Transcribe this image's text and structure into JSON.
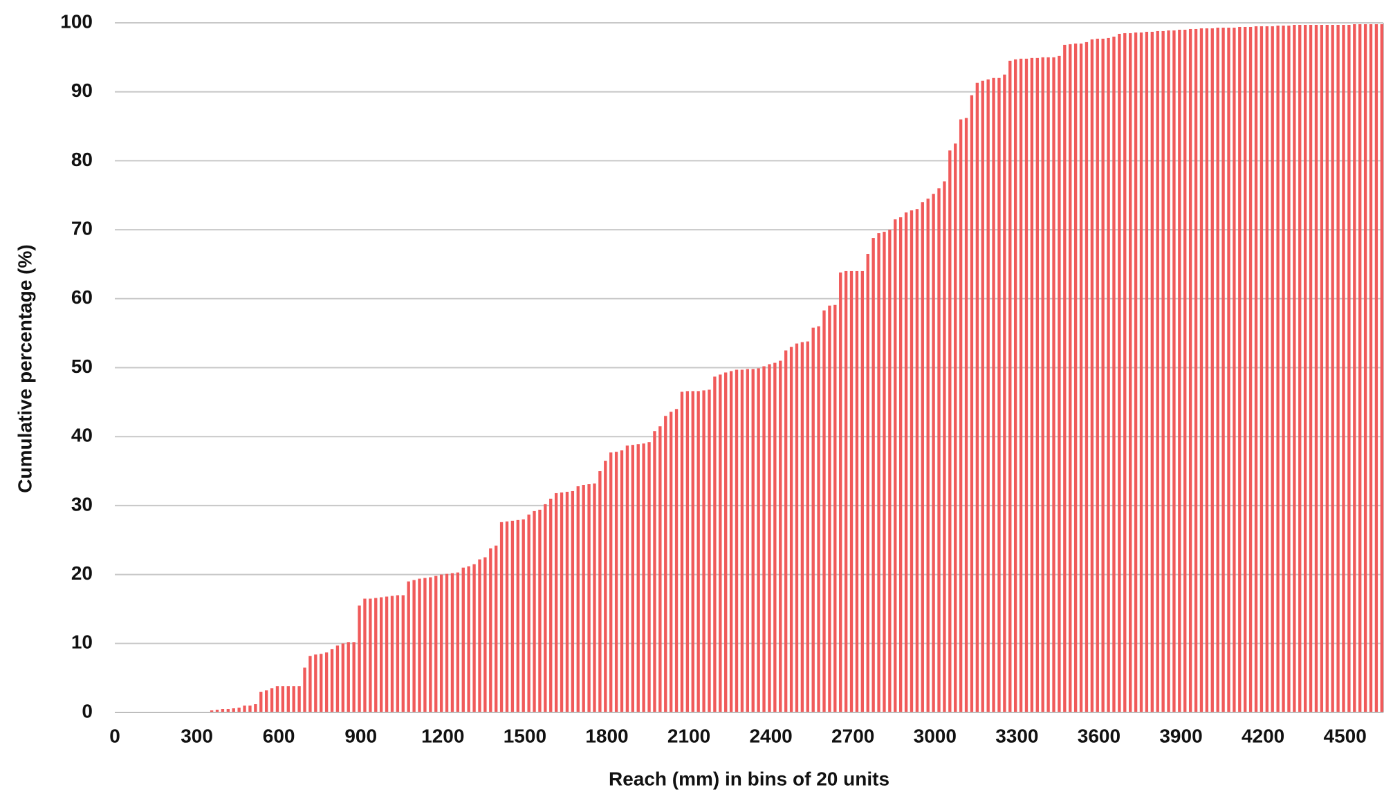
{
  "chart_data": {
    "type": "histogram",
    "xlabel": "Reach (mm) in bins of 20 units",
    "ylabel": "Cumulative percentage (%)",
    "color": "#f05a5a",
    "grid": true,
    "xlim": [
      0,
      4640
    ],
    "ylim": [
      0,
      100
    ],
    "xticks": [
      0,
      300,
      600,
      900,
      1200,
      1500,
      1800,
      2100,
      2400,
      2700,
      3000,
      3300,
      3600,
      3900,
      4200,
      4500
    ],
    "yticks": [
      0,
      10,
      20,
      30,
      40,
      50,
      60,
      70,
      80,
      90,
      100
    ],
    "bins": [
      0,
      20,
      40,
      60,
      80,
      100,
      120,
      140,
      160,
      180,
      200,
      220,
      240,
      260,
      280,
      300,
      320,
      340,
      360,
      380,
      400,
      420,
      440,
      460,
      480,
      500,
      520,
      540,
      560,
      580,
      600,
      620,
      640,
      660,
      680,
      700,
      720,
      740,
      760,
      780,
      800,
      820,
      840,
      860,
      880,
      900,
      920,
      940,
      960,
      980,
      1000,
      1020,
      1040,
      1060,
      1080,
      1100,
      1120,
      1140,
      1160,
      1180,
      1200,
      1220,
      1240,
      1260,
      1280,
      1300,
      1320,
      1340,
      1360,
      1380,
      1400,
      1420,
      1440,
      1460,
      1480,
      1500,
      1520,
      1540,
      1560,
      1580,
      1600,
      1620,
      1640,
      1660,
      1680,
      1700,
      1720,
      1740,
      1760,
      1780,
      1800,
      1820,
      1840,
      1860,
      1880,
      1900,
      1920,
      1940,
      1960,
      1980,
      2000,
      2020,
      2040,
      2060,
      2080,
      2100,
      2120,
      2140,
      2160,
      2180,
      2200,
      2220,
      2240,
      2260,
      2280,
      2300,
      2320,
      2340,
      2360,
      2380,
      2400,
      2420,
      2440,
      2460,
      2480,
      2500,
      2520,
      2540,
      2560,
      2580,
      2600,
      2620,
      2640,
      2660,
      2680,
      2700,
      2720,
      2740,
      2760,
      2780,
      2800,
      2820,
      2840,
      2860,
      2880,
      2900,
      2920,
      2940,
      2960,
      2980,
      3000,
      3020,
      3040,
      3060,
      3080,
      3100,
      3120,
      3140,
      3160,
      3180,
      3200,
      3220,
      3240,
      3260,
      3280,
      3300,
      3320,
      3340,
      3360,
      3380,
      3400,
      3420,
      3440,
      3460,
      3480,
      3500,
      3520,
      3540,
      3560,
      3580,
      3600,
      3620,
      3640,
      3660,
      3680,
      3700,
      3720,
      3740,
      3760,
      3780,
      3800,
      3820,
      3840,
      3860,
      3880,
      3900,
      3920,
      3940,
      3960,
      3980,
      4000,
      4020,
      4040,
      4060,
      4080,
      4100,
      4120,
      4140,
      4160,
      4180,
      4200,
      4220,
      4240,
      4260,
      4280,
      4300,
      4320,
      4340,
      4360,
      4380,
      4400,
      4420,
      4440,
      4460,
      4480,
      4500,
      4520,
      4540,
      4560,
      4580,
      4600,
      4620,
      4640
    ],
    "values": [
      0,
      0,
      0,
      0,
      0,
      0,
      0,
      0,
      0,
      0,
      0,
      0,
      0,
      0,
      0,
      0,
      0,
      0.3,
      0.4,
      0.5,
      0.5,
      0.6,
      0.7,
      1,
      1,
      1.2,
      3,
      3.2,
      3.5,
      3.8,
      3.8,
      3.8,
      3.8,
      3.8,
      6.5,
      8.2,
      8.4,
      8.5,
      8.7,
      9.2,
      9.7,
      10,
      10.2,
      10.2,
      15.5,
      16.5,
      16.5,
      16.6,
      16.7,
      16.8,
      16.9,
      17,
      17,
      19,
      19.2,
      19.4,
      19.5,
      19.6,
      19.8,
      20,
      20.1,
      20.2,
      20.3,
      21,
      21.2,
      21.5,
      22.2,
      22.5,
      23.8,
      24.2,
      27.6,
      27.7,
      27.8,
      27.9,
      28,
      28.7,
      29.2,
      29.4,
      30.2,
      31,
      31.8,
      31.9,
      32,
      32.1,
      32.8,
      33,
      33.1,
      33.2,
      35,
      36.5,
      37.7,
      37.8,
      38,
      38.7,
      38.8,
      38.9,
      39,
      39.2,
      40.8,
      41.5,
      43,
      43.6,
      44,
      46.5,
      46.6,
      46.6,
      46.6,
      46.7,
      46.8,
      48.7,
      49,
      49.3,
      49.5,
      49.7,
      49.7,
      49.8,
      49.8,
      49.9,
      50.2,
      50.5,
      50.7,
      51,
      52.5,
      53,
      53.5,
      53.7,
      53.8,
      55.8,
      56,
      58.3,
      59,
      59.1,
      63.8,
      64,
      64,
      64,
      64,
      66.5,
      68.8,
      69.5,
      69.7,
      70,
      71.5,
      71.8,
      72.5,
      72.8,
      73,
      74,
      74.5,
      75.2,
      76,
      77,
      81.5,
      82.5,
      86,
      86.2,
      89.5,
      91.3,
      91.6,
      91.8,
      92,
      92,
      92.5,
      94.5,
      94.7,
      94.8,
      94.8,
      94.9,
      94.9,
      95,
      95,
      95,
      95.2,
      96.8,
      96.9,
      97,
      97,
      97.2,
      97.6,
      97.7,
      97.7,
      97.8,
      98,
      98.4,
      98.5,
      98.5,
      98.6,
      98.6,
      98.7,
      98.7,
      98.8,
      98.8,
      98.9,
      98.9,
      99,
      99,
      99.1,
      99.1,
      99.2,
      99.2,
      99.2,
      99.3,
      99.3,
      99.3,
      99.3,
      99.4,
      99.4,
      99.4,
      99.5,
      99.5,
      99.5,
      99.5,
      99.6,
      99.6,
      99.6,
      99.7,
      99.7,
      99.7,
      99.7,
      99.7,
      99.7,
      99.7,
      99.7,
      99.7,
      99.7,
      99.7,
      99.8,
      99.8,
      99.8,
      99.8,
      99.8,
      99.8
    ]
  }
}
